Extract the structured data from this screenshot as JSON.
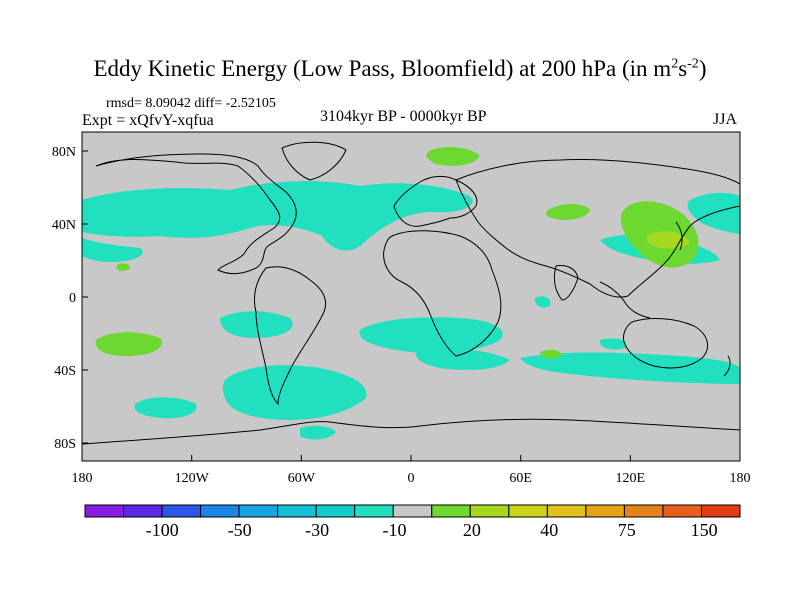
{
  "title": {
    "main": "Eddy Kinetic Energy (Low Pass, Bloomfield) at 200 hPa (in m",
    "sup1": "2",
    "mid": "s",
    "sup2": "-2",
    "close": ")"
  },
  "stats": "rmsd= 8.09042  diff= -2.52105",
  "experiment": "Expt = xQfvY-xqfua",
  "period": "3104kyr BP - 0000kyr BP",
  "season": "JJA",
  "axes": {
    "y_labels": [
      "80N",
      "40N",
      "0",
      "40S",
      "80S"
    ],
    "x_labels": [
      "180",
      "120W",
      "60W",
      "0",
      "60E",
      "120E",
      "180"
    ]
  },
  "colorbar": {
    "colors": [
      "#8a1ee0",
      "#5a28e6",
      "#2a56e6",
      "#1a86e6",
      "#18a6e0",
      "#16bed6",
      "#12cccc",
      "#20e0c0",
      "#c8c8c8",
      "#6cd830",
      "#a6d820",
      "#cdd21a",
      "#e0c01a",
      "#e6a218",
      "#e6821a",
      "#e6601c",
      "#e23c16"
    ],
    "labels": [
      "-100",
      "-50",
      "-30",
      "-10",
      "20",
      "40",
      "75",
      "150"
    ]
  },
  "chart_data": {
    "type": "map",
    "variable": "Eddy kinetic energy difference at 200 hPa",
    "units": "m2 s-2",
    "levels": [
      -150,
      -100,
      -75,
      -50,
      -40,
      -30,
      -20,
      -10,
      10,
      20,
      30,
      40,
      50,
      75,
      100,
      150
    ],
    "lon_range": [
      -180,
      180
    ],
    "lat_range": [
      -90,
      90
    ]
  }
}
